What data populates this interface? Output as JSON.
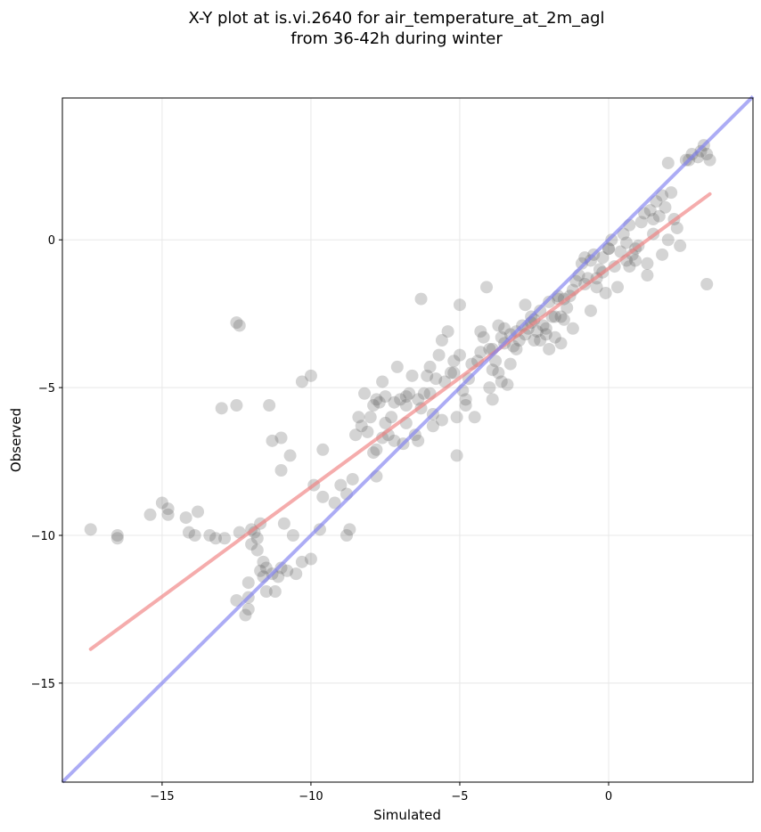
{
  "chart_data": {
    "type": "scatter",
    "title": [
      "X-Y plot at is.vi.2640 for air_temperature_at_2m_agl",
      "from 36-42h during winter"
    ],
    "xlabel": "Simulated",
    "ylabel": "Observed",
    "xlim": [
      -18.35,
      4.85
    ],
    "ylim": [
      -18.35,
      4.8
    ],
    "xticks": [
      -15,
      -10,
      -5,
      0
    ],
    "yticks": [
      0,
      -5,
      -10,
      -15
    ],
    "grid": true,
    "colors": {
      "points": "#555555",
      "regression": "#f08080",
      "identity": "#8080f0"
    },
    "series": [
      {
        "type": "points",
        "x": [
          -17.4,
          -16.5,
          -16.5,
          -15.4,
          -15.0,
          -14.8,
          -14.8,
          -14.2,
          -14.1,
          -13.9,
          -13.8,
          -13.4,
          -13.2,
          -13.0,
          -12.9,
          -12.5,
          -12.5,
          -12.4,
          -12.4,
          -12.2,
          -12.1,
          -12.1,
          -12.1,
          -12.0,
          -12.0,
          -11.9,
          -11.8,
          -11.8,
          -11.7,
          -11.7,
          -11.6,
          -11.6,
          -11.5,
          -11.5,
          -11.4,
          -11.3,
          -11.3,
          -11.2,
          -11.1,
          -11.0,
          -11.0,
          -10.9,
          -10.8,
          -10.7,
          -10.6,
          -10.5,
          -10.3,
          -10.3,
          -10.0,
          -9.9,
          -9.6,
          -9.6,
          -9.2,
          -9.0,
          -8.8,
          -8.7,
          -8.6,
          -8.5,
          -8.4,
          -8.3,
          -8.1,
          -8.0,
          -7.9,
          -7.9,
          -7.8,
          -7.8,
          -7.7,
          -7.6,
          -7.6,
          -7.5,
          -7.5,
          -7.3,
          -7.2,
          -7.1,
          -7.0,
          -6.9,
          -6.8,
          -6.8,
          -6.7,
          -6.6,
          -6.5,
          -6.4,
          -6.3,
          -6.2,
          -6.1,
          -6.0,
          -5.9,
          -5.9,
          -5.8,
          -5.7,
          -5.6,
          -5.5,
          -5.4,
          -5.3,
          -5.2,
          -5.1,
          -5.1,
          -5.0,
          -4.9,
          -4.8,
          -4.7,
          -4.6,
          -4.5,
          -4.4,
          -4.3,
          -4.2,
          -4.0,
          -4.0,
          -3.9,
          -3.9,
          -3.8,
          -3.7,
          -3.6,
          -3.6,
          -3.5,
          -3.4,
          -3.3,
          -3.2,
          -3.1,
          -3.0,
          -2.9,
          -2.8,
          -2.7,
          -2.6,
          -2.5,
          -2.4,
          -2.3,
          -2.3,
          -2.2,
          -2.1,
          -2.0,
          -2.0,
          -1.9,
          -1.8,
          -1.7,
          -1.6,
          -1.6,
          -1.5,
          -1.4,
          -1.3,
          -1.2,
          -1.1,
          -1.0,
          -0.9,
          -0.8,
          -0.7,
          -0.6,
          -0.5,
          -0.4,
          -0.3,
          -0.2,
          -0.1,
          0.0,
          0.1,
          0.2,
          0.3,
          0.4,
          0.5,
          0.6,
          0.7,
          0.8,
          0.9,
          1.0,
          1.1,
          1.2,
          1.3,
          1.4,
          1.5,
          1.6,
          1.7,
          1.8,
          1.9,
          2.0,
          2.1,
          2.2,
          2.4,
          2.6,
          2.7,
          2.8,
          3.0,
          3.1,
          3.2,
          3.3,
          3.4,
          -12.5,
          -10.0,
          -9.7,
          -8.2,
          -7.8,
          -7.2,
          -6.8,
          -6.0,
          -5.2,
          -4.3,
          -3.7,
          -3.3,
          -2.8,
          -2.1,
          -1.5,
          -0.8,
          -0.2,
          0.6,
          1.3,
          2.0,
          -11.0,
          -8.8,
          -7.4,
          -6.4,
          -5.6,
          -4.8,
          -3.9,
          -3.1,
          -2.5,
          -1.8,
          -1.2,
          -0.6,
          0.0,
          0.7,
          1.5,
          2.3,
          3.3,
          -6.3,
          -5.0,
          -3.5,
          -4.1,
          -2.6,
          -1.7,
          -0.4,
          0.9,
          1.8
        ],
        "y": [
          -9.8,
          -10.0,
          -10.1,
          -9.3,
          -8.9,
          -9.1,
          -9.3,
          -9.4,
          -9.9,
          -10.0,
          -9.2,
          -10.0,
          -10.1,
          -5.7,
          -10.1,
          -2.8,
          -5.6,
          -2.9,
          -9.9,
          -12.7,
          -12.5,
          -12.1,
          -11.6,
          -9.8,
          -10.3,
          -9.9,
          -10.1,
          -10.5,
          -11.2,
          -9.6,
          -10.9,
          -11.4,
          -11.1,
          -11.9,
          -5.6,
          -6.8,
          -11.3,
          -11.9,
          -11.4,
          -6.7,
          -7.8,
          -9.6,
          -11.2,
          -7.3,
          -10.0,
          -11.3,
          -4.8,
          -10.9,
          -4.6,
          -8.3,
          -7.1,
          -8.7,
          -8.9,
          -8.3,
          -8.6,
          -9.8,
          -8.1,
          -6.6,
          -6.0,
          -6.3,
          -6.5,
          -6.0,
          -5.6,
          -7.2,
          -5.4,
          -8.0,
          -5.5,
          -6.7,
          -4.8,
          -5.3,
          -6.2,
          -6.0,
          -5.5,
          -4.3,
          -5.4,
          -6.9,
          -5.3,
          -5.6,
          -5.2,
          -4.6,
          -6.6,
          -5.4,
          -5.7,
          -5.2,
          -4.6,
          -4.3,
          -6.3,
          -5.9,
          -4.7,
          -3.9,
          -3.4,
          -4.8,
          -3.1,
          -4.5,
          -4.1,
          -7.3,
          -6.0,
          -3.9,
          -5.1,
          -5.6,
          -4.7,
          -4.2,
          -6.0,
          -4.1,
          -3.8,
          -3.3,
          -5.0,
          -3.7,
          -5.4,
          -3.7,
          -4.1,
          -4.5,
          -4.8,
          -3.3,
          -3.5,
          -4.9,
          -3.2,
          -3.6,
          -3.1,
          -3.4,
          -2.9,
          -3.2,
          -3.0,
          -2.6,
          -2.7,
          -3.1,
          -2.4,
          -3.4,
          -2.9,
          -3.2,
          -2.1,
          -3.7,
          -2.6,
          -3.3,
          -2.0,
          -2.6,
          -3.5,
          -2.7,
          -2.3,
          -1.9,
          -1.7,
          -1.4,
          -1.2,
          -0.8,
          -1.5,
          -1.3,
          -0.7,
          -0.5,
          -1.6,
          -1.0,
          -0.6,
          -1.8,
          -0.3,
          0.0,
          -0.9,
          -1.6,
          -0.4,
          0.2,
          -0.7,
          0.5,
          -0.5,
          -0.3,
          -0.2,
          0.6,
          0.9,
          -0.8,
          1.0,
          0.7,
          1.3,
          0.8,
          1.5,
          1.1,
          2.6,
          1.6,
          0.7,
          -0.2,
          2.7,
          2.7,
          2.9,
          2.8,
          3.0,
          3.2,
          2.9,
          2.7,
          -12.2,
          -10.8,
          -9.8,
          -5.2,
          -7.1,
          -6.8,
          -6.2,
          -5.2,
          -4.5,
          -3.1,
          -2.9,
          -4.2,
          -2.2,
          -3.0,
          -2.0,
          -0.6,
          -1.1,
          -0.1,
          -1.2,
          0.0,
          -11.1,
          -10.0,
          -6.6,
          -6.8,
          -6.1,
          -5.4,
          -4.4,
          -3.7,
          -3.4,
          -2.6,
          -3.0,
          -2.4,
          -0.3,
          -0.9,
          0.2,
          0.4,
          -1.5,
          -2.0,
          -2.2,
          -3.0,
          -1.6,
          -2.8,
          -1.9,
          -1.3,
          -0.7,
          -0.5
        ]
      },
      {
        "type": "regression-line",
        "x": [
          -17.4,
          3.4
        ],
        "y": [
          -13.85,
          1.55
        ]
      },
      {
        "type": "identity-line",
        "x": [
          -18.35,
          4.85
        ],
        "y": [
          -18.35,
          4.85
        ]
      }
    ]
  }
}
